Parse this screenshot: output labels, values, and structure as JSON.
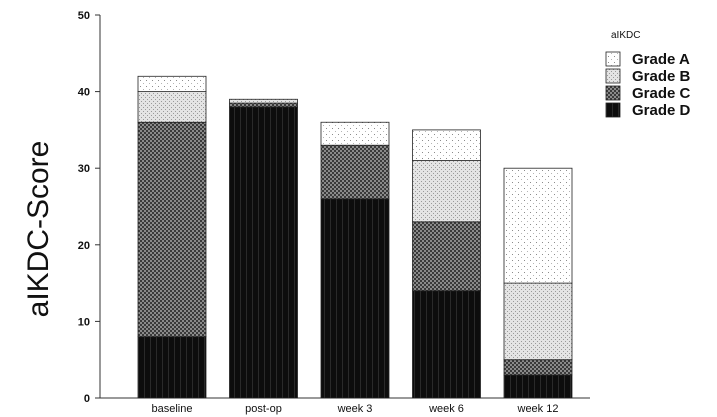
{
  "chart_data": {
    "type": "bar",
    "stacked": true,
    "ylabel": "aIKDC-Score",
    "xlabel": "",
    "ylim": [
      0,
      50
    ],
    "yticks": [
      0,
      10,
      20,
      30,
      40,
      50
    ],
    "grid": false,
    "legend_title": "aIKDC",
    "legend_position": "top-right",
    "categories": [
      "baseline",
      "post-op",
      "week 3",
      "week 6",
      "week 12"
    ],
    "series": [
      {
        "name": "Grade D",
        "values": [
          8,
          38,
          26,
          14,
          3
        ],
        "pattern": "dark"
      },
      {
        "name": "Grade C",
        "values": [
          28,
          0.5,
          7,
          9,
          2
        ],
        "pattern": "checker"
      },
      {
        "name": "Grade B",
        "values": [
          4,
          0.5,
          0,
          8,
          10
        ],
        "pattern": "light-dots"
      },
      {
        "name": "Grade A",
        "values": [
          2,
          0,
          3,
          4,
          15
        ],
        "pattern": "sparse-dots"
      }
    ],
    "legend_order": [
      "Grade A",
      "Grade B",
      "Grade C",
      "Grade D"
    ]
  }
}
